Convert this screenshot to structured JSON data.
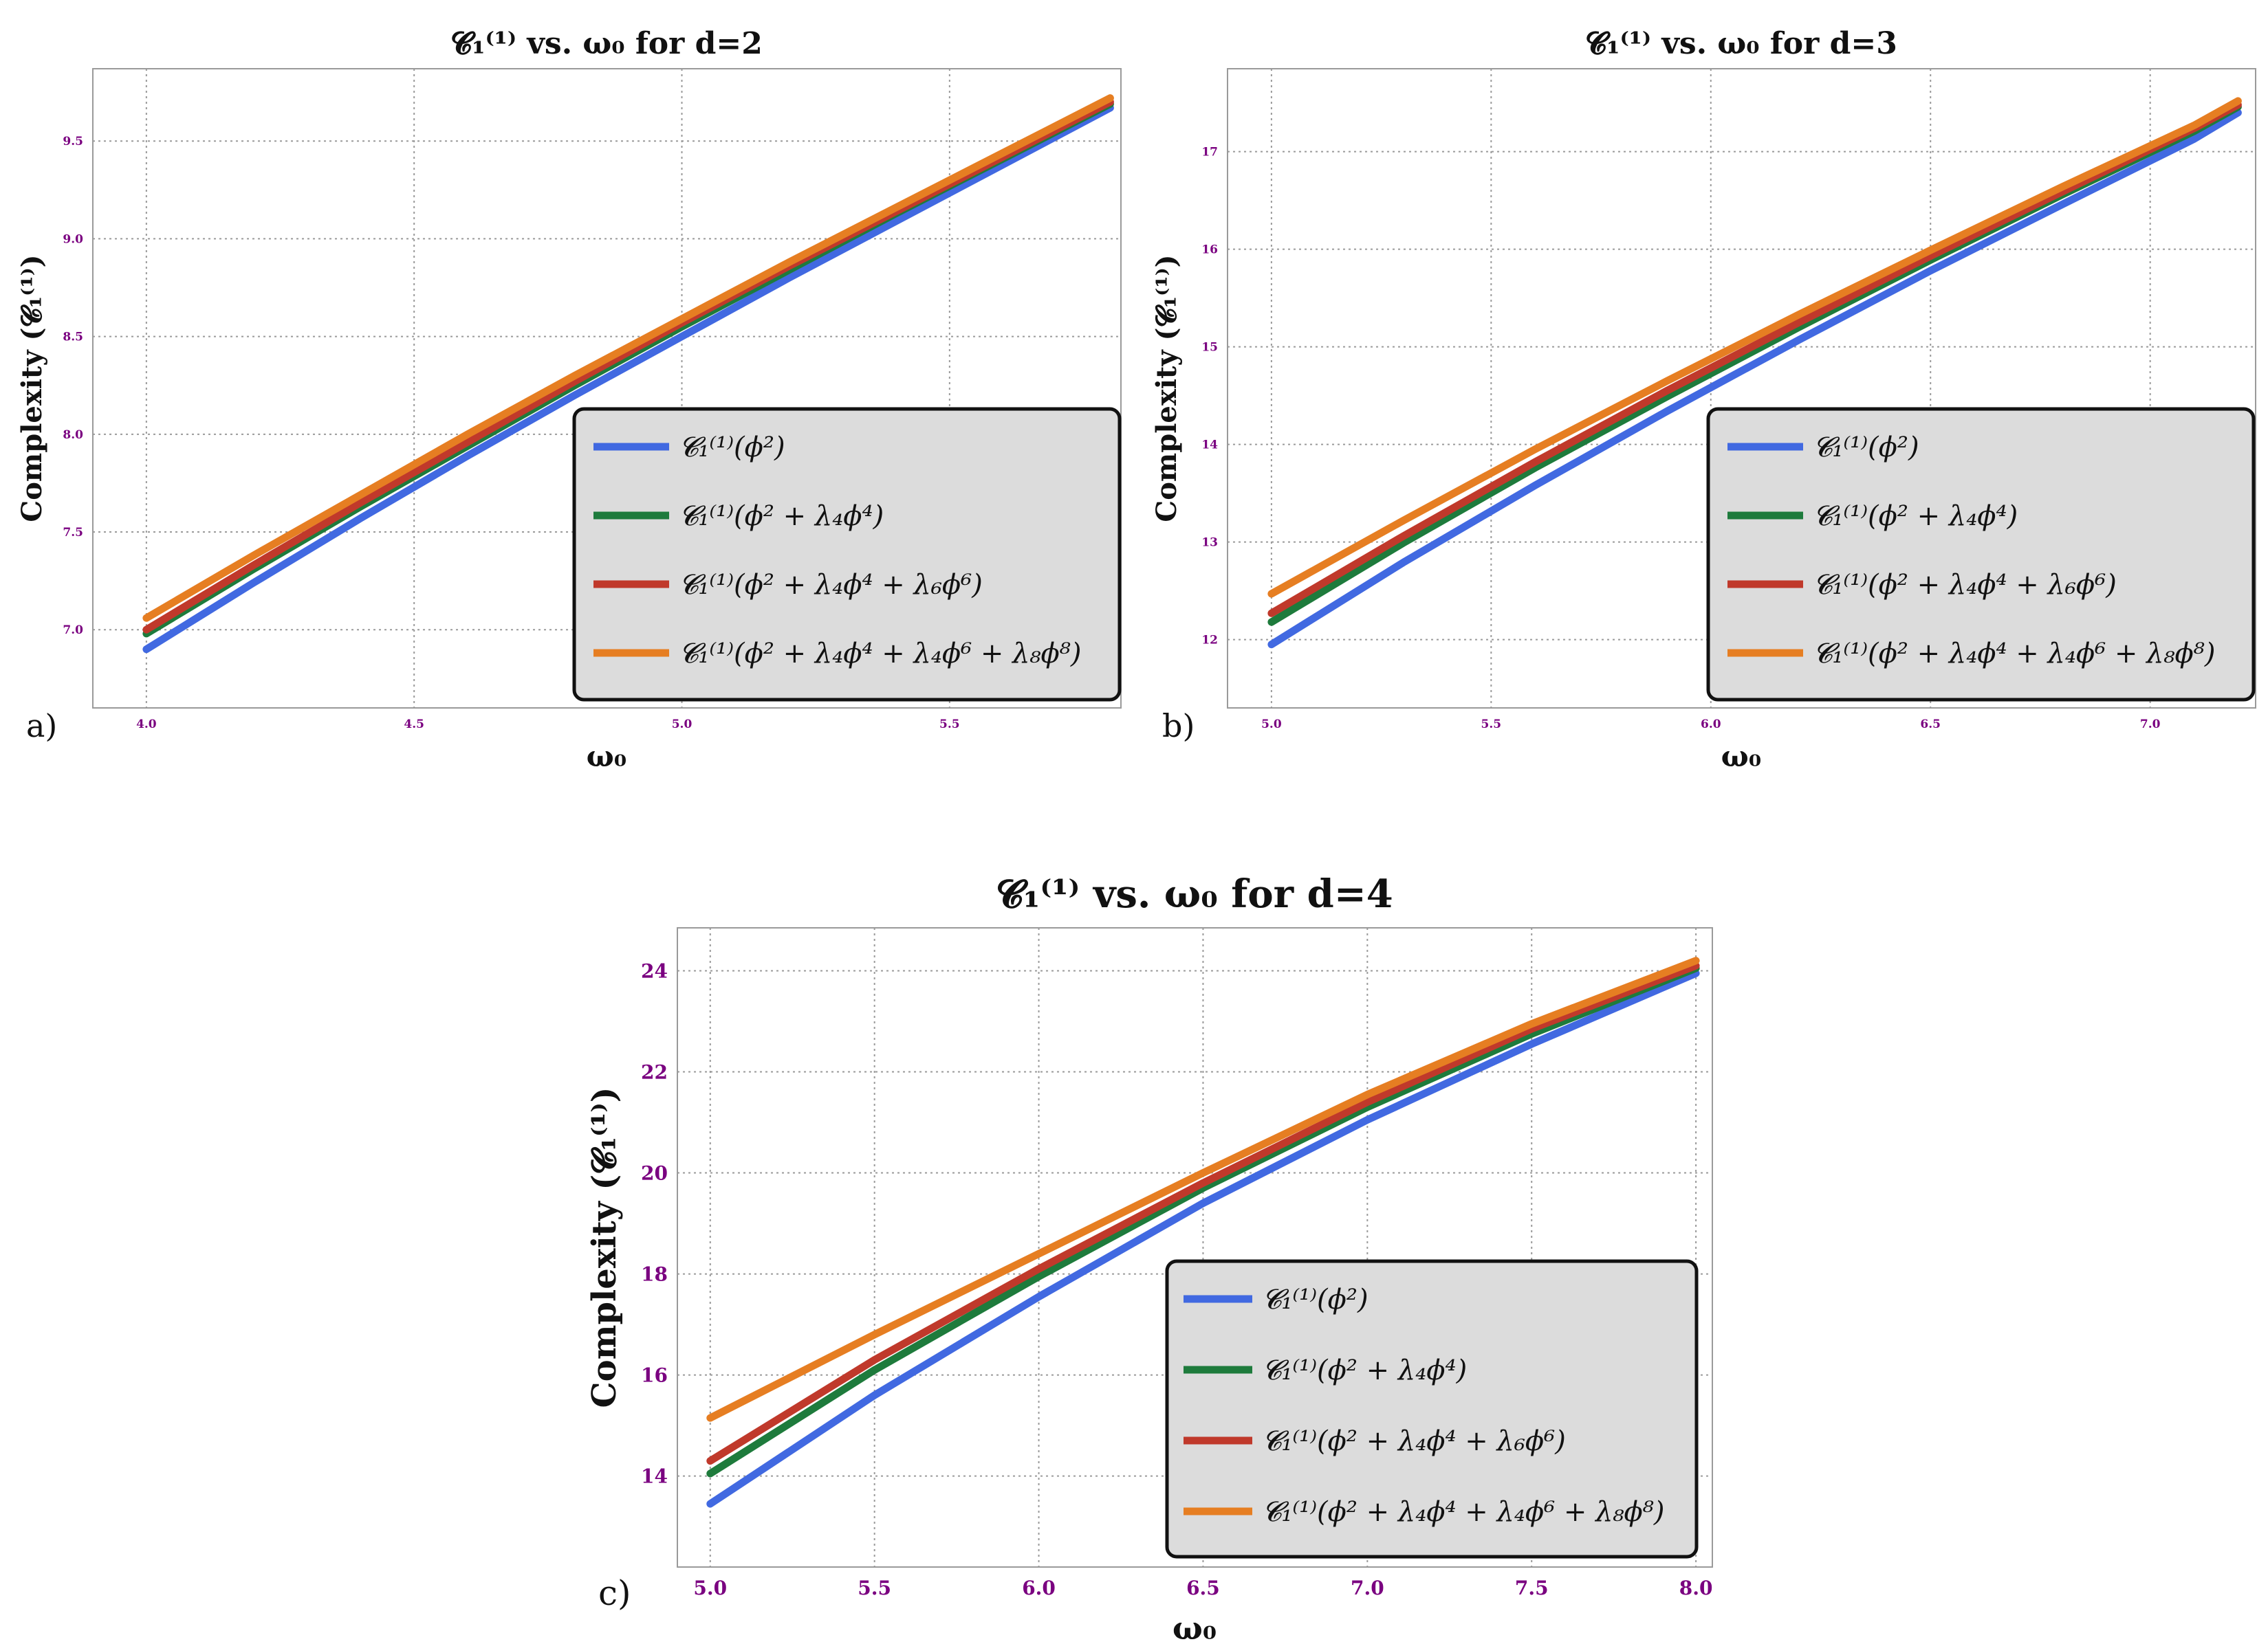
{
  "chart_data": [
    {
      "panel_label": "a)",
      "type": "line",
      "title": "𝓒₁⁽¹⁾ vs. ω₀ for d=2",
      "xlabel": "ω₀",
      "ylabel": "Complexity (𝓒₁⁽¹⁾)",
      "xlim": [
        3.9,
        5.82
      ],
      "ylim": [
        6.6,
        9.87
      ],
      "xticks": [
        4.0,
        4.5,
        5.0,
        5.5
      ],
      "xtick_labels": [
        "4.0",
        "4.5",
        "5.0",
        "5.5"
      ],
      "yticks": [
        7.0,
        7.5,
        8.0,
        8.5,
        9.0,
        9.5
      ],
      "ytick_labels": [
        "7.0",
        "7.5",
        "8.0",
        "8.5",
        "9.0",
        "9.5"
      ],
      "grid": true,
      "legend_position": "bottom-right",
      "x": [
        4.0,
        4.2,
        4.4,
        4.6,
        4.8,
        5.0,
        5.2,
        5.4,
        5.6,
        5.8
      ],
      "series": [
        {
          "name": "𝓒₁⁽¹⁾(ϕ²)",
          "color": "#4169e1",
          "values": [
            6.9,
            7.24,
            7.57,
            7.89,
            8.2,
            8.5,
            8.8,
            9.09,
            9.38,
            9.67
          ]
        },
        {
          "name": "𝓒₁⁽¹⁾(ϕ² + λ₄ϕ⁴)",
          "color": "#1e7b3c",
          "values": [
            6.98,
            7.31,
            7.63,
            7.94,
            8.25,
            8.55,
            8.84,
            9.13,
            9.41,
            9.69
          ]
        },
        {
          "name": "𝓒₁⁽¹⁾(ϕ² + λ₄ϕ⁴ + λ₆ϕ⁶)",
          "color": "#c0392b",
          "values": [
            7.0,
            7.33,
            7.65,
            7.96,
            8.27,
            8.57,
            8.86,
            9.14,
            9.42,
            9.7
          ]
        },
        {
          "name": "𝓒₁⁽¹⁾(ϕ² + λ₄ϕ⁴ + λ₄ϕ⁶ + λ₈ϕ⁸)",
          "color": "#e67e22",
          "values": [
            7.06,
            7.38,
            7.69,
            8.0,
            8.3,
            8.59,
            8.88,
            9.16,
            9.44,
            9.72
          ]
        }
      ]
    },
    {
      "panel_label": "b)",
      "type": "line",
      "title": "𝓒₁⁽¹⁾ vs. ω₀ for d=3",
      "xlabel": "ω₀",
      "ylabel": "Complexity (𝓒₁⁽¹⁾)",
      "xlim": [
        4.9,
        7.24
      ],
      "ylim": [
        11.3,
        17.85
      ],
      "xticks": [
        5.0,
        5.5,
        6.0,
        6.5,
        7.0
      ],
      "xtick_labels": [
        "5.0",
        "5.5",
        "6.0",
        "6.5",
        "7.0"
      ],
      "yticks": [
        12,
        13,
        14,
        15,
        16,
        17
      ],
      "ytick_labels": [
        "12",
        "13",
        "14",
        "15",
        "16",
        "17"
      ],
      "grid": true,
      "legend_position": "bottom-right",
      "x": [
        5.0,
        5.3,
        5.6,
        5.9,
        6.2,
        6.5,
        6.8,
        7.1,
        7.2
      ],
      "series": [
        {
          "name": "𝓒₁⁽¹⁾(ϕ²)",
          "color": "#4169e1",
          "values": [
            11.95,
            12.79,
            13.58,
            14.34,
            15.07,
            15.78,
            16.46,
            17.13,
            17.4
          ]
        },
        {
          "name": "𝓒₁⁽¹⁾(ϕ² + λ₄ϕ⁴)",
          "color": "#1e7b3c",
          "values": [
            12.18,
            12.99,
            13.76,
            14.49,
            15.2,
            15.89,
            16.56,
            17.21,
            17.46
          ]
        },
        {
          "name": "𝓒₁⁽¹⁾(ϕ² + λ₄ϕ⁴ + λ₆ϕ⁶)",
          "color": "#c0392b",
          "values": [
            12.27,
            13.06,
            13.82,
            14.55,
            15.25,
            15.93,
            16.59,
            17.24,
            17.48
          ]
        },
        {
          "name": "𝓒₁⁽¹⁾(ϕ² + λ₄ϕ⁴ + λ₄ϕ⁶ + λ₈ϕ⁸)",
          "color": "#e67e22",
          "values": [
            12.47,
            13.22,
            13.95,
            14.65,
            15.33,
            15.99,
            16.64,
            17.27,
            17.52
          ]
        }
      ]
    },
    {
      "panel_label": "c)",
      "type": "line",
      "title": "𝓒₁⁽¹⁾ vs. ω₀ for d=4",
      "xlabel": "ω₀",
      "ylabel": "Complexity (𝓒₁⁽¹⁾)",
      "xlim": [
        4.9,
        8.05
      ],
      "ylim": [
        12.2,
        24.85
      ],
      "xticks": [
        5.0,
        5.5,
        6.0,
        6.5,
        7.0,
        7.5,
        8.0
      ],
      "xtick_labels": [
        "5.0",
        "5.5",
        "6.0",
        "6.5",
        "7.0",
        "7.5",
        "8.0"
      ],
      "yticks": [
        14,
        16,
        18,
        20,
        22,
        24
      ],
      "ytick_labels": [
        "14",
        "16",
        "18",
        "20",
        "22",
        "24"
      ],
      "grid": true,
      "legend_position": "bottom-right",
      "x": [
        5.0,
        5.5,
        6.0,
        6.5,
        7.0,
        7.5,
        8.0
      ],
      "series": [
        {
          "name": "𝓒₁⁽¹⁾(ϕ²)",
          "color": "#4169e1",
          "values": [
            13.45,
            15.6,
            17.55,
            19.4,
            21.05,
            22.55,
            23.95
          ]
        },
        {
          "name": "𝓒₁⁽¹⁾(ϕ² + λ₄ϕ⁴)",
          "color": "#1e7b3c",
          "values": [
            14.05,
            16.1,
            17.95,
            19.7,
            21.3,
            22.75,
            24.05
          ]
        },
        {
          "name": "𝓒₁⁽¹⁾(ϕ² + λ₄ϕ⁴ + λ₆ϕ⁶)",
          "color": "#c0392b",
          "values": [
            14.3,
            16.3,
            18.1,
            19.8,
            21.4,
            22.85,
            24.1
          ]
        },
        {
          "name": "𝓒₁⁽¹⁾(ϕ² + λ₄ϕ⁴ + λ₄ϕ⁶ + λ₈ϕ⁸)",
          "color": "#e67e22",
          "values": [
            15.15,
            16.8,
            18.4,
            20.0,
            21.55,
            22.95,
            24.2
          ]
        }
      ]
    }
  ]
}
